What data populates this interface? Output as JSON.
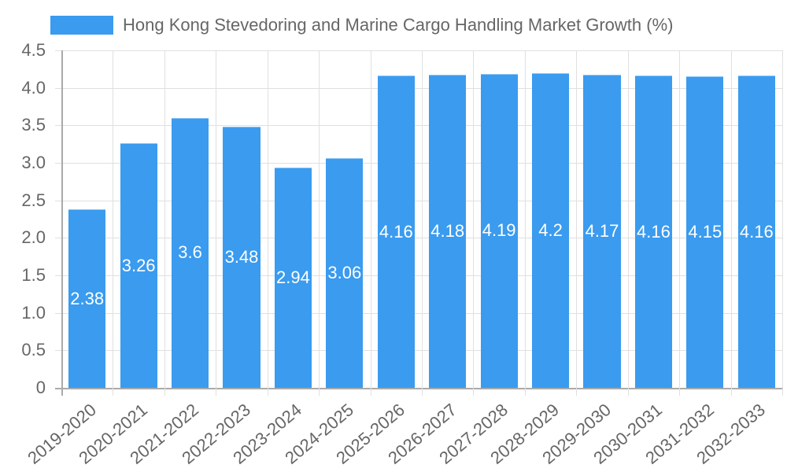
{
  "chart_data": {
    "type": "bar",
    "title": "",
    "legend": [
      "Hong Kong Stevedoring and Marine Cargo Handling Market Growth (%)"
    ],
    "legend_position": "top",
    "xlabel": "",
    "ylabel": "",
    "ylim": [
      0,
      4.5
    ],
    "yticks": [
      "0",
      "0.5",
      "1.0",
      "1.5",
      "2.0",
      "2.5",
      "3.0",
      "3.5",
      "4.0",
      "4.5"
    ],
    "grid": true,
    "categories": [
      "2019-2020",
      "2020-2021",
      "2021-2022",
      "2022-2023",
      "2023-2024",
      "2024-2025",
      "2025-2026",
      "2026-2027",
      "2027-2028",
      "2028-2029",
      "2029-2030",
      "2030-2031",
      "2031-2032",
      "2032-2033"
    ],
    "series": [
      {
        "name": "Hong Kong Stevedoring and Marine Cargo Handling Market Growth (%)",
        "color": "#3a9bef",
        "values": [
          2.38,
          3.26,
          3.6,
          3.48,
          2.94,
          3.06,
          4.16,
          4.18,
          4.19,
          4.2,
          4.17,
          4.16,
          4.15,
          4.16
        ],
        "labels": [
          "2.38",
          "3.26",
          "3.6",
          "3.48",
          "2.94",
          "3.06",
          "4.16",
          "4.18",
          "4.19",
          "4.2",
          "4.17",
          "4.16",
          "4.15",
          "4.16"
        ]
      }
    ]
  }
}
